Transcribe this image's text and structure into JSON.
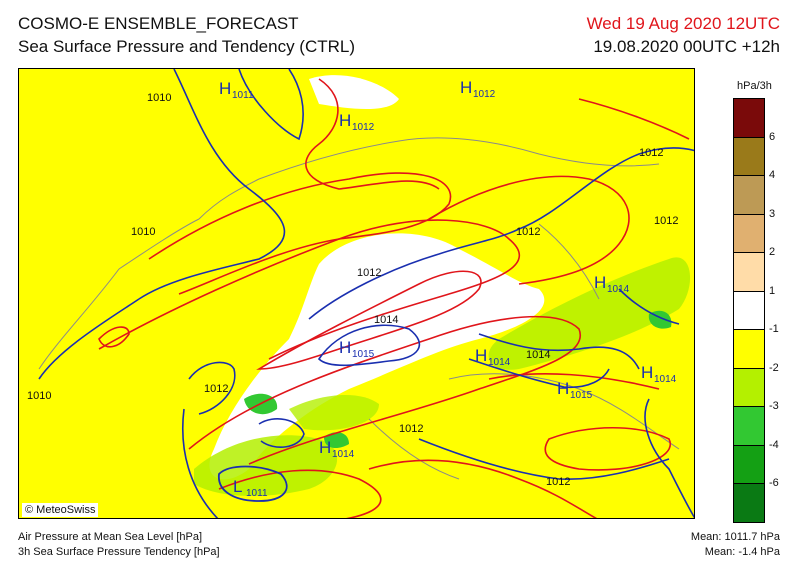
{
  "header": {
    "title_line1": "COSMO-E ENSEMBLE_FORECAST",
    "title_line2": "Sea Surface Pressure and Tendency (CTRL)",
    "valid_time": "Wed 19 Aug 2020 12UTC",
    "run_time": "19.08.2020 00UTC +12h"
  },
  "map": {
    "copyright": "© MeteoSwiss",
    "isobar_labels": [
      "1010",
      "1010",
      "1010",
      "1012",
      "1012",
      "1012",
      "1012",
      "1014",
      "1014",
      "1012",
      "1012",
      "1012"
    ],
    "pressure_centers": [
      {
        "mark": "H",
        "value": "1011"
      },
      {
        "mark": "H",
        "value": "1012"
      },
      {
        "mark": "H",
        "value": "1012"
      },
      {
        "mark": "H",
        "value": "1014"
      },
      {
        "mark": "H",
        "value": "1015"
      },
      {
        "mark": "H",
        "value": "1014"
      },
      {
        "mark": "H",
        "value": "1015"
      },
      {
        "mark": "H",
        "value": "1014"
      },
      {
        "mark": "H",
        "value": "1014"
      },
      {
        "mark": "L",
        "value": "1011"
      }
    ]
  },
  "legend": {
    "unit": "hPa/3h",
    "swatch_colors": [
      "#7a0a0a",
      "#9a7a1a",
      "#bd9a55",
      "#e0b070",
      "#ffdca8",
      "#ffffff",
      "#ffff00",
      "#b4f000",
      "#32c832",
      "#14a014",
      "#0a7a14"
    ],
    "tick_labels": [
      "6",
      "4",
      "3",
      "2",
      "1",
      "-1",
      "-2",
      "-3",
      "-4",
      "-6"
    ]
  },
  "footer": {
    "field1": "Air Pressure at Mean Sea Level [hPa]",
    "field2": "3h Sea Surface Pressure Tendency [hPa]",
    "mean_pressure": "Mean: 1011.7 hPa",
    "mean_tendency": "Mean:  -1.4 hPa"
  },
  "colors": {
    "tendency_background": "#ffff00",
    "isobar_blue": "#1a2fb0",
    "isobar_red": "#e0151b",
    "valid_time_text": "#e0151b"
  }
}
